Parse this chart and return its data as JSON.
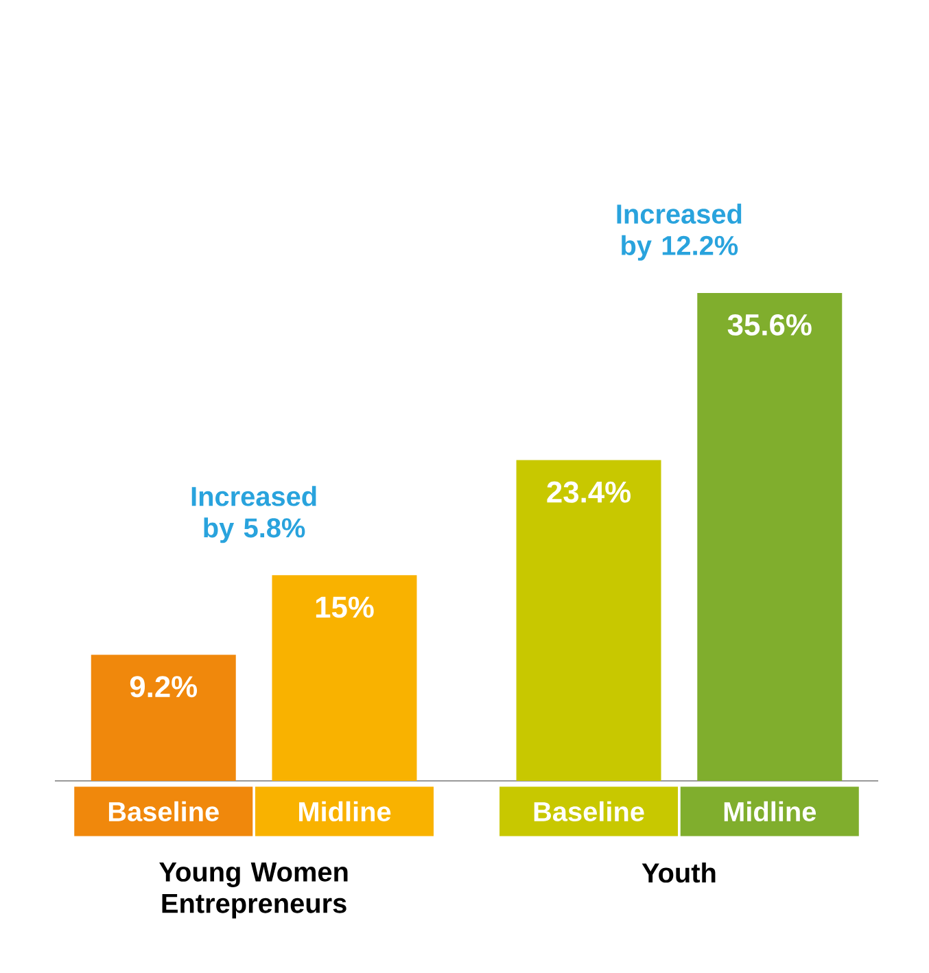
{
  "chart_data": {
    "type": "bar",
    "categories": [
      "Baseline",
      "Midline",
      "Baseline",
      "Midline"
    ],
    "values": [
      9.2,
      15,
      23.4,
      35.6
    ],
    "colors": [
      "#f0880c",
      "#f9b200",
      "#c8c800",
      "#80ae2d"
    ],
    "value_labels": [
      "9.2%",
      "15%",
      "23.4%",
      "35.6%"
    ],
    "annotations": [
      "Increased by 5.8%",
      "Increased by 12.2%",
      "Young Women Entrepreneurs",
      "Youth"
    ]
  }
}
